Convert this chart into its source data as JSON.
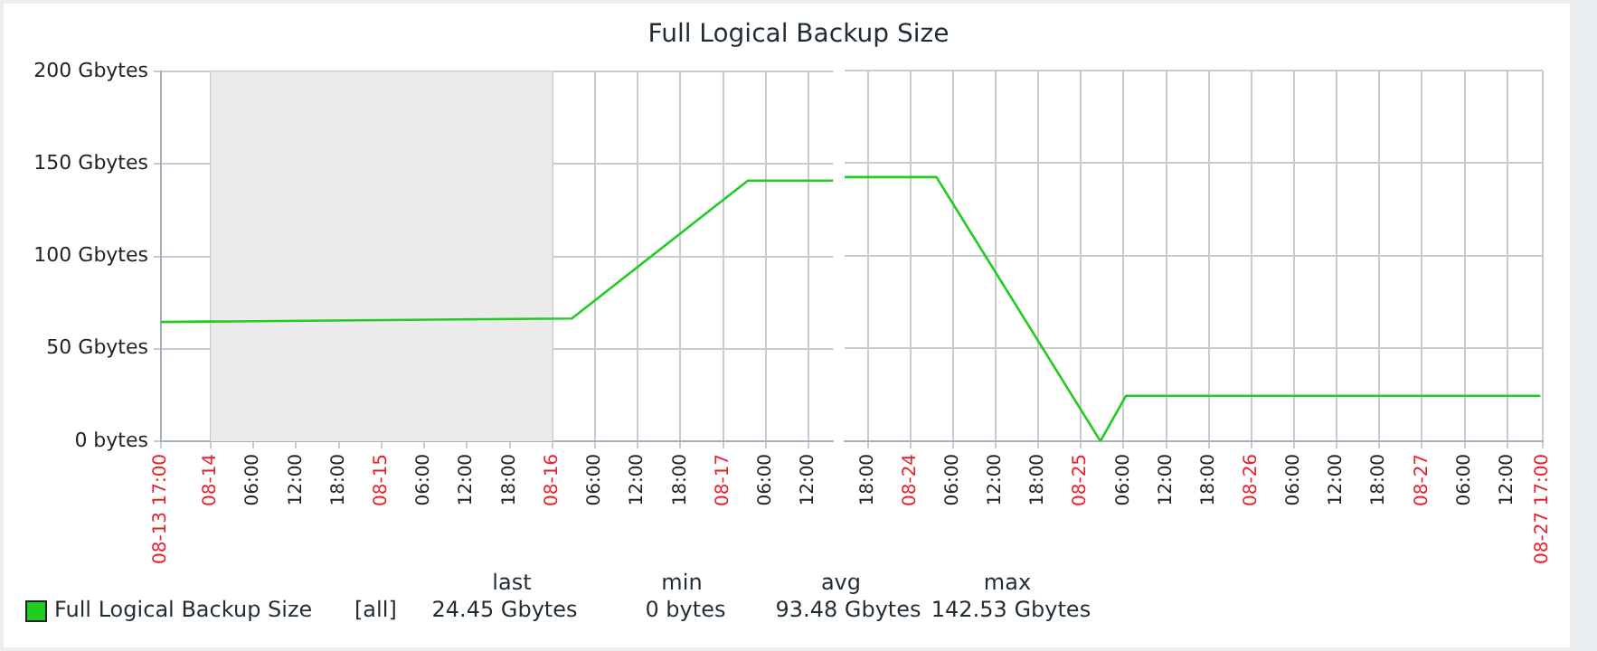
{
  "chart_data": [
    {
      "type": "line",
      "title": "Full Logical Backup Size",
      "legend": "bottom",
      "grid": true,
      "marker": "none",
      "xlim": [
        "--08-13T17:00",
        "--08-17T15:30"
      ],
      "xticks": [
        {
          "value": "--08-13T17:00",
          "label": "08-13 17:00"
        },
        {
          "value": "--08-14T00:00",
          "label": "08-14"
        },
        {
          "value": "--08-14T06:00",
          "label": "06:00"
        },
        {
          "value": "--08-14T12:00",
          "label": "12:00"
        },
        {
          "value": "--08-14T18:00",
          "label": "18:00"
        },
        {
          "value": "--08-15T00:00",
          "label": "08-15"
        },
        {
          "value": "--08-15T06:00",
          "label": "06:00"
        },
        {
          "value": "--08-15T12:00",
          "label": "12:00"
        },
        {
          "value": "--08-15T18:00",
          "label": "18:00"
        },
        {
          "value": "--08-16T00:00",
          "label": "08-16"
        },
        {
          "value": "--08-16T06:00",
          "label": "06:00"
        },
        {
          "value": "--08-16T12:00",
          "label": "12:00"
        },
        {
          "value": "--08-16T18:00",
          "label": "18:00"
        },
        {
          "value": "--08-17T00:00",
          "label": "08-17"
        },
        {
          "value": "--08-17T06:00",
          "label": "06:00"
        },
        {
          "value": "--08-17T12:00",
          "label": "12:00"
        }
      ],
      "ylim": [
        0,
        200
      ],
      "yticks": [
        {
          "value": 0,
          "label": "0 bytes"
        },
        {
          "value": 50,
          "label": "50 Gbytes"
        },
        {
          "value": 100,
          "label": "100 Gbytes"
        },
        {
          "value": 150,
          "label": "150 Gbytes"
        },
        {
          "value": 200,
          "label": "200 Gbytes"
        }
      ],
      "bands": [
        {
          "axis": "x",
          "from": "--08-14T00:00",
          "to": "--08-16T00:00",
          "color": "#ebebeb"
        }
      ],
      "series": [
        {
          "name": "Full Logical Backup Size",
          "color": "#1fcc1f",
          "x": [
            "--08-13T17:00",
            "--08-16T02:45",
            "--08-17T03:30",
            "--08-17T15:30"
          ],
          "values": [
            64.5,
            66.4,
            141,
            141
          ]
        }
      ],
      "annotations": [
        "[all]",
        "last",
        "min",
        "avg",
        "max",
        "24.45 Gbytes",
        "0 bytes",
        "93.48 Gbytes",
        "142.53 Gbytes"
      ]
    },
    {
      "type": "line",
      "grid": true,
      "marker": "none",
      "tick_labels": "x",
      "xlim": [
        "--08-23T14:45",
        "--08-27T17:00"
      ],
      "xticks": [
        {
          "value": "--08-23T18:00",
          "label": "18:00"
        },
        {
          "value": "--08-24T00:00",
          "label": "08-24"
        },
        {
          "value": "--08-24T06:00",
          "label": "06:00"
        },
        {
          "value": "--08-24T12:00",
          "label": "12:00"
        },
        {
          "value": "--08-24T18:00",
          "label": "18:00"
        },
        {
          "value": "--08-25T00:00",
          "label": "08-25"
        },
        {
          "value": "--08-25T06:00",
          "label": "06:00"
        },
        {
          "value": "--08-25T12:00",
          "label": "12:00"
        },
        {
          "value": "--08-25T18:00",
          "label": "18:00"
        },
        {
          "value": "--08-26T00:00",
          "label": "08-26"
        },
        {
          "value": "--08-26T06:00",
          "label": "06:00"
        },
        {
          "value": "--08-26T12:00",
          "label": "12:00"
        },
        {
          "value": "--08-26T18:00",
          "label": "18:00"
        },
        {
          "value": "--08-27T00:00",
          "label": "08-27"
        },
        {
          "value": "--08-27T06:00",
          "label": "06:00"
        },
        {
          "value": "--08-27T12:00",
          "label": "12:00"
        },
        {
          "value": "--08-27T17:00",
          "label": "08-27 17:00"
        }
      ],
      "ylim": [
        0,
        200
      ],
      "yticks": [
        0,
        50,
        100,
        150,
        200
      ],
      "series": [
        {
          "color": "#1fcc1f",
          "x": [
            "--08-23T14:45",
            "--08-24T03:40",
            "--08-25T02:45",
            "--08-25T06:20",
            "--08-27T16:40"
          ],
          "values": [
            142.5,
            142.5,
            0,
            24.45,
            24.45
          ]
        }
      ]
    }
  ]
}
